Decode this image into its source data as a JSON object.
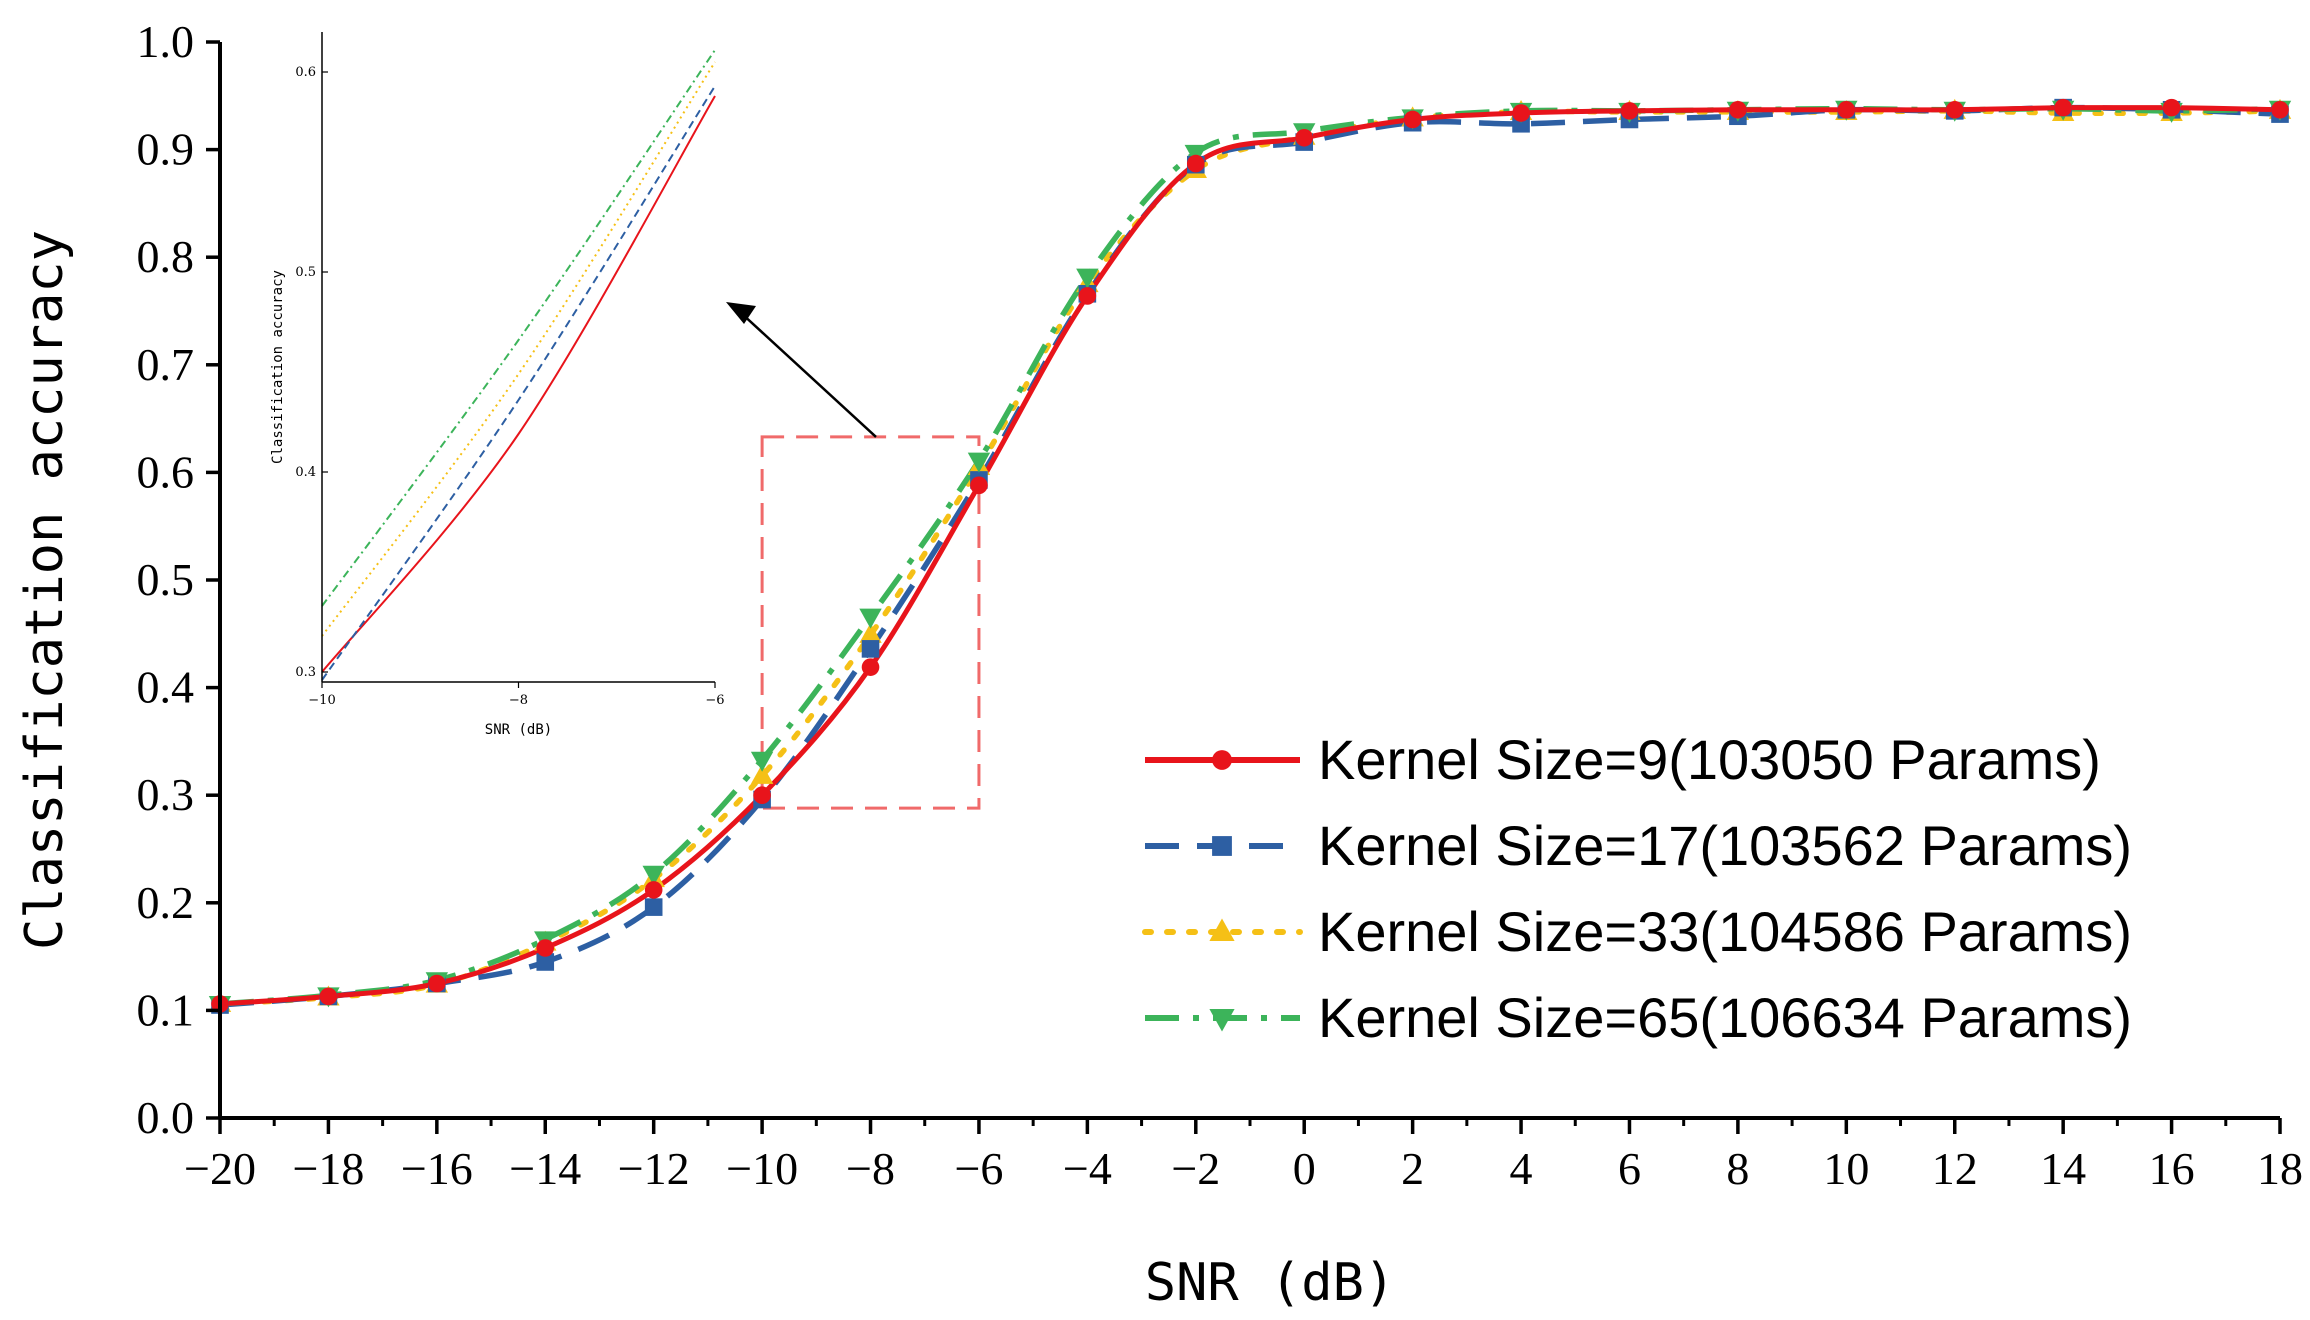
{
  "chart_data": [
    {
      "type": "line",
      "xlabel": "SNR (dB)",
      "ylabel": "Classification accuracy",
      "xlim": [
        -20,
        18
      ],
      "ylim": [
        0.0,
        1.0
      ],
      "x_ticks": [
        -20,
        -18,
        -16,
        -14,
        -12,
        -10,
        -8,
        -6,
        -4,
        -2,
        0,
        2,
        4,
        6,
        8,
        10,
        12,
        14,
        16,
        18
      ],
      "x_tick_labels": [
        "−20",
        "−18",
        "−16",
        "−14",
        "−12",
        "−10",
        "−8",
        "−6",
        "−4",
        "−2",
        "0",
        "2",
        "4",
        "6",
        "8",
        "10",
        "12",
        "14",
        "16",
        "18"
      ],
      "y_ticks": [
        0.0,
        0.1,
        0.2,
        0.3,
        0.4,
        0.5,
        0.6,
        0.7,
        0.8,
        0.9,
        1.0
      ],
      "y_tick_labels": [
        "0.0",
        "0.1",
        "0.2",
        "0.3",
        "0.4",
        "0.5",
        "0.6",
        "0.7",
        "0.8",
        "0.9",
        "1.0"
      ],
      "legend_position": "bottom-right",
      "x": [
        -20,
        -18,
        -16,
        -14,
        -12,
        -10,
        -8,
        -6,
        -4,
        -2,
        0,
        2,
        4,
        6,
        8,
        10,
        12,
        14,
        16,
        18
      ],
      "series": [
        {
          "name": "Kernel Size=9(103050 Params)",
          "color": "#e8141b",
          "line_style": "solid",
          "marker": "circle",
          "values": [
            0.106,
            0.113,
            0.125,
            0.158,
            0.212,
            0.3,
            0.419,
            0.588,
            0.764,
            0.887,
            0.911,
            0.928,
            0.934,
            0.936,
            0.937,
            0.937,
            0.937,
            0.939,
            0.939,
            0.937
          ]
        },
        {
          "name": "Kernel Size=17(103562 Params)",
          "color": "#2d5fa3",
          "line_style": "dashed",
          "marker": "square",
          "values": [
            0.105,
            0.113,
            0.125,
            0.145,
            0.196,
            0.296,
            0.436,
            0.593,
            0.766,
            0.886,
            0.907,
            0.925,
            0.924,
            0.928,
            0.931,
            0.937,
            0.936,
            0.939,
            0.937,
            0.933
          ]
        },
        {
          "name": "Kernel Size=33(104586 Params)",
          "color": "#f5c016",
          "line_style": "dotted",
          "marker": "triangle-up",
          "values": [
            0.106,
            0.112,
            0.124,
            0.163,
            0.222,
            0.318,
            0.449,
            0.605,
            0.775,
            0.881,
            0.912,
            0.929,
            0.935,
            0.935,
            0.935,
            0.935,
            0.936,
            0.934,
            0.934,
            0.936
          ]
        },
        {
          "name": "Kernel Size=65(106634 Params)",
          "color": "#3cb45a",
          "line_style": "dashdot",
          "marker": "triangle-down",
          "values": [
            0.106,
            0.114,
            0.128,
            0.166,
            0.227,
            0.333,
            0.466,
            0.611,
            0.782,
            0.897,
            0.917,
            0.93,
            0.936,
            0.936,
            0.937,
            0.938,
            0.937,
            0.938,
            0.936,
            0.938
          ]
        }
      ]
    },
    {
      "type": "line",
      "role": "inset zoom of SNR −10 to −6 dB",
      "xlabel": "SNR (dB)",
      "ylabel": "Classification accuracy",
      "xlim": [
        -10,
        -6
      ],
      "ylim": [
        0.295,
        0.62
      ],
      "x_ticks": [
        -10,
        -8,
        -6
      ],
      "x_tick_labels": [
        "−10",
        "−8",
        "−6"
      ],
      "y_ticks": [
        0.3,
        0.4,
        0.5,
        0.6
      ],
      "y_tick_labels": [
        "0.3",
        "0.4",
        "0.5",
        "0.6"
      ],
      "x": [
        -10,
        -8,
        -6
      ],
      "series": [
        {
          "name": "Kernel Size=9",
          "color": "#e8141b",
          "line_style": "solid",
          "values": [
            0.3,
            0.419,
            0.588
          ]
        },
        {
          "name": "Kernel Size=17",
          "color": "#2d5fa3",
          "line_style": "dashed",
          "values": [
            0.296,
            0.436,
            0.593
          ]
        },
        {
          "name": "Kernel Size=33",
          "color": "#f5c016",
          "line_style": "dotted",
          "values": [
            0.318,
            0.449,
            0.605
          ]
        },
        {
          "name": "Kernel Size=65",
          "color": "#3cb45a",
          "line_style": "dashdot",
          "values": [
            0.333,
            0.466,
            0.611
          ]
        }
      ]
    }
  ]
}
